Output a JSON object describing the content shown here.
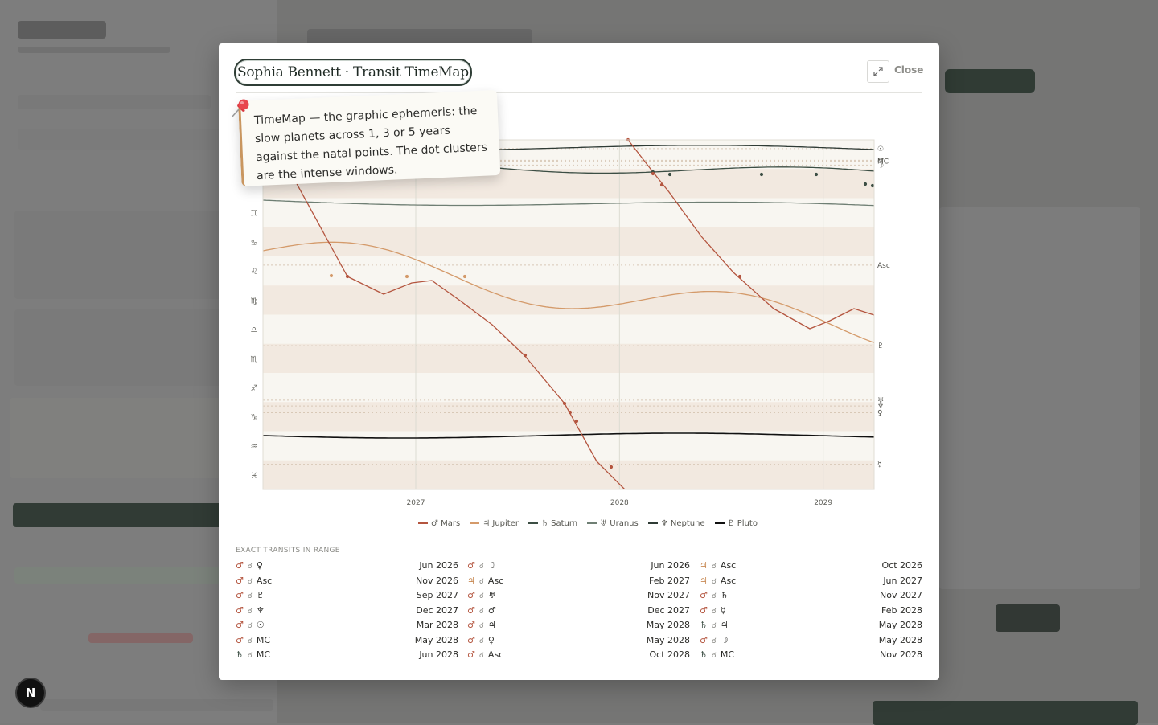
{
  "modal": {
    "title": "Sophia Bennett · Transit TimeMap",
    "close_label": "Close",
    "expand_icon": "expand-icon"
  },
  "note": {
    "text": "TimeMap — the graphic ephemeris: the slow planets across 1, 3 or 5 years against the natal points. The dot clusters are the intense windows.",
    "icon": "pushpin-icon"
  },
  "chart_data": {
    "type": "line",
    "x_range": [
      "2026-04",
      "2029-04"
    ],
    "x_ticks": [
      "2027",
      "2028",
      "2029"
    ],
    "y_axis_signs": [
      "♈",
      "♉",
      "♊",
      "♋",
      "♌",
      "♍",
      "♎",
      "♏",
      "♐",
      "♑",
      "♒",
      "♓"
    ],
    "y_visible_signs": [
      "♊",
      "♋",
      "♌",
      "♍",
      "♎",
      "♏",
      "♐",
      "♑",
      "♒",
      "♓"
    ],
    "natal_points": [
      {
        "label": "☉",
        "deg": 9
      },
      {
        "label": "♂",
        "deg": 21
      },
      {
        "label": "MC",
        "deg": 22
      },
      {
        "label": "☽",
        "deg": 26
      },
      {
        "label": "Asc",
        "deg": 129
      },
      {
        "label": "♇",
        "deg": 212
      },
      {
        "label": "♅",
        "deg": 268
      },
      {
        "label": "♆",
        "deg": 274
      },
      {
        "label": "♀",
        "deg": 281
      },
      {
        "label": "☿",
        "deg": 334
      }
    ],
    "series": [
      {
        "name": "♂ Mars",
        "color": "#b4553f"
      },
      {
        "name": "♃ Jupiter",
        "color": "#d49a6a"
      },
      {
        "name": "♄ Saturn",
        "color": "#3c4e44"
      },
      {
        "name": "♅ Uranus",
        "color": "#6f7f74"
      },
      {
        "name": "♆ Neptune",
        "color": "#2f3b35"
      },
      {
        "name": "♇ Pluto",
        "color": "#111111"
      }
    ],
    "grid": true
  },
  "exact_transits": {
    "title": "EXACT TRANSITS IN RANGE",
    "columns": [
      [
        {
          "p1": "♂",
          "aspect": "☌",
          "p2": "♀",
          "date": "Jun 2026"
        },
        {
          "p1": "♂",
          "aspect": "☌",
          "p2": "Asc",
          "date": "Nov 2026"
        },
        {
          "p1": "♂",
          "aspect": "☌",
          "p2": "♇",
          "date": "Sep 2027"
        },
        {
          "p1": "♂",
          "aspect": "☌",
          "p2": "♆",
          "date": "Dec 2027"
        },
        {
          "p1": "♂",
          "aspect": "☌",
          "p2": "☉",
          "date": "Mar 2028"
        },
        {
          "p1": "♂",
          "aspect": "☌",
          "p2": "MC",
          "date": "May 2028"
        },
        {
          "p1": "♄",
          "aspect": "☌",
          "p2": "MC",
          "date": "Jun 2028"
        }
      ],
      [
        {
          "p1": "♂",
          "aspect": "☌",
          "p2": "☽",
          "date": "Jun 2026"
        },
        {
          "p1": "♃",
          "aspect": "☌",
          "p2": "Asc",
          "date": "Feb 2027"
        },
        {
          "p1": "♂",
          "aspect": "☌",
          "p2": "♅",
          "date": "Nov 2027"
        },
        {
          "p1": "♂",
          "aspect": "☌",
          "p2": "♂",
          "date": "Dec 2027"
        },
        {
          "p1": "♂",
          "aspect": "☌",
          "p2": "♃",
          "date": "May 2028"
        },
        {
          "p1": "♂",
          "aspect": "☌",
          "p2": "♀",
          "date": "May 2028"
        },
        {
          "p1": "♂",
          "aspect": "☌",
          "p2": "Asc",
          "date": "Oct 2028"
        }
      ],
      [
        {
          "p1": "♃",
          "aspect": "☌",
          "p2": "Asc",
          "date": "Oct 2026"
        },
        {
          "p1": "♃",
          "aspect": "☌",
          "p2": "Asc",
          "date": "Jun 2027"
        },
        {
          "p1": "♂",
          "aspect": "☌",
          "p2": "♄",
          "date": "Nov 2027"
        },
        {
          "p1": "♂",
          "aspect": "☌",
          "p2": "☿",
          "date": "Feb 2028"
        },
        {
          "p1": "♄",
          "aspect": "☌",
          "p2": "♃",
          "date": "May 2028"
        },
        {
          "p1": "♂",
          "aspect": "☌",
          "p2": "☽",
          "date": "May 2028"
        },
        {
          "p1": "♄",
          "aspect": "☌",
          "p2": "MC",
          "date": "Nov 2028"
        }
      ]
    ]
  },
  "next_badge": {
    "label": "N"
  }
}
